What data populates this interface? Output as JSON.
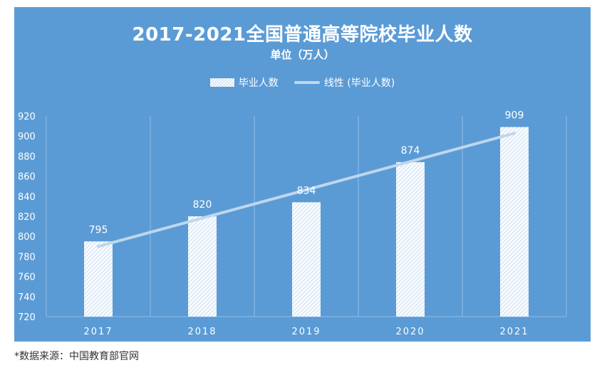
{
  "chart_data": {
    "type": "bar",
    "title": "2017-2021全国普通高等院校毕业人数",
    "subtitle": "单位（万人）",
    "categories": [
      "2017",
      "2018",
      "2019",
      "2020",
      "2021"
    ],
    "series": [
      {
        "name": "毕业人数",
        "values": [
          795,
          820,
          834,
          874,
          909
        ]
      }
    ],
    "trendline": {
      "name": "线性 (毕业人数)",
      "type": "linear"
    },
    "ylim": [
      720,
      920
    ],
    "yticks": [
      720,
      740,
      760,
      780,
      800,
      820,
      840,
      860,
      880,
      900,
      920
    ],
    "data_labels": [
      "795",
      "820",
      "834",
      "874",
      "909"
    ],
    "grid": "vertical",
    "legend_position": "top",
    "colors": {
      "background": "#5b9bd5",
      "bar": "#ffffff",
      "trendline": "#bdd7ee"
    }
  },
  "footer": {
    "source": "*数据来源：中国教育部官网"
  }
}
